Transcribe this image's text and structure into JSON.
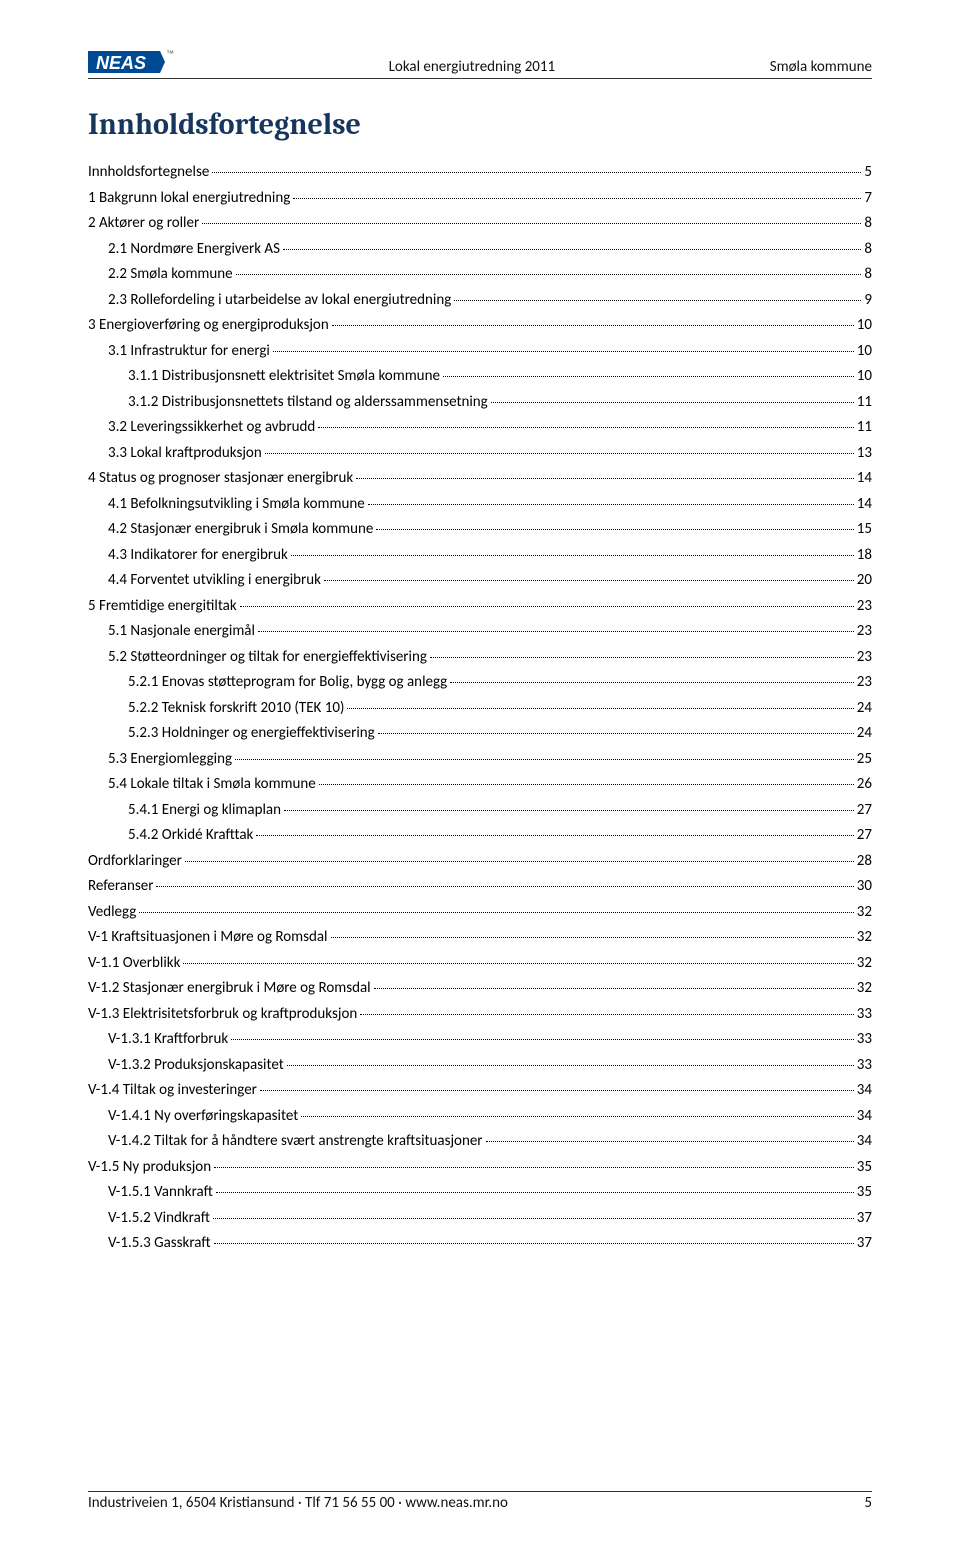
{
  "header": {
    "center": "Lokal energiutredning 2011",
    "right": "Smøla kommune"
  },
  "logo": {
    "text": "NEAS",
    "bg_color": "#004a93",
    "text_color": "#ffffff",
    "trademark": "™"
  },
  "title": "Innholdsfortegnelse",
  "toc": [
    {
      "label": "Innholdsfortegnelse",
      "page": "5",
      "indent": 0
    },
    {
      "label": "1 Bakgrunn lokal energiutredning",
      "page": "7",
      "indent": 0
    },
    {
      "label": "2 Aktører og roller",
      "page": "8",
      "indent": 0
    },
    {
      "label": "2.1 Nordmøre Energiverk AS",
      "page": "8",
      "indent": 1
    },
    {
      "label": "2.2 Smøla kommune",
      "page": "8",
      "indent": 1
    },
    {
      "label": "2.3 Rollefordeling i utarbeidelse av lokal energiutredning",
      "page": "9",
      "indent": 1
    },
    {
      "label": "3 Energioverføring og energiproduksjon",
      "page": "10",
      "indent": 0
    },
    {
      "label": "3.1 Infrastruktur for energi",
      "page": "10",
      "indent": 1
    },
    {
      "label": "3.1.1 Distribusjonsnett elektrisitet Smøla kommune",
      "page": "10",
      "indent": 2
    },
    {
      "label": "3.1.2  Distribusjonsnettets tilstand og alderssammensetning",
      "page": "11",
      "indent": 2
    },
    {
      "label": "3.2 Leveringssikkerhet og avbrudd",
      "page": "11",
      "indent": 1
    },
    {
      "label": "3.3 Lokal kraftproduksjon",
      "page": "13",
      "indent": 1
    },
    {
      "label": "4 Status og prognoser stasjonær energibruk",
      "page": "14",
      "indent": 0
    },
    {
      "label": "4.1 Befolkningsutvikling i Smøla kommune",
      "page": "14",
      "indent": 1
    },
    {
      "label": "4.2 Stasjonær energibruk i Smøla kommune",
      "page": "15",
      "indent": 1
    },
    {
      "label": "4.3 Indikatorer for energibruk",
      "page": "18",
      "indent": 1
    },
    {
      "label": "4.4 Forventet utvikling i energibruk",
      "page": "20",
      "indent": 1
    },
    {
      "label": "5 Fremtidige energitiltak",
      "page": "23",
      "indent": 0
    },
    {
      "label": "5.1 Nasjonale energimål",
      "page": "23",
      "indent": 1
    },
    {
      "label": "5.2 Støtteordninger og tiltak for energieffektivisering",
      "page": "23",
      "indent": 1
    },
    {
      "label": "5.2.1 Enovas støtteprogram for Bolig, bygg og anlegg",
      "page": "23",
      "indent": 2
    },
    {
      "label": "5.2.2 Teknisk forskrift 2010 (TEK 10)",
      "page": "24",
      "indent": 2
    },
    {
      "label": "5.2.3 Holdninger og energieffektivisering",
      "page": "24",
      "indent": 2
    },
    {
      "label": "5.3 Energiomlegging",
      "page": "25",
      "indent": 1
    },
    {
      "label": "5.4 Lokale tiltak i Smøla kommune",
      "page": "26",
      "indent": 1
    },
    {
      "label": "5.4.1 Energi og klimaplan",
      "page": "27",
      "indent": 2
    },
    {
      "label": "5.4.2 Orkidé Krafttak",
      "page": "27",
      "indent": 2
    },
    {
      "label": "Ordforklaringer",
      "page": "28",
      "indent": 0
    },
    {
      "label": "Referanser",
      "page": "30",
      "indent": 0
    },
    {
      "label": "Vedlegg",
      "page": "32",
      "indent": 0
    },
    {
      "label": "V-1 Kraftsituasjonen i Møre og Romsdal",
      "page": "32",
      "indent": 0
    },
    {
      "label": "V-1.1 Overblikk",
      "page": "32",
      "indent": 0
    },
    {
      "label": "V-1.2 Stasjonær energibruk i Møre og Romsdal",
      "page": "32",
      "indent": 0
    },
    {
      "label": "V-1.3      Elektrisitetsforbruk og kraftproduksjon",
      "page": "33",
      "indent": 0
    },
    {
      "label": "V-1.3.1    Kraftforbruk",
      "page": "33",
      "indent": 1
    },
    {
      "label": "V-1.3.2    Produksjonskapasitet",
      "page": "33",
      "indent": 1
    },
    {
      "label": "V-1.4      Tiltak og investeringer",
      "page": "34",
      "indent": 0
    },
    {
      "label": "V-1.4.1    Ny overføringskapasitet",
      "page": "34",
      "indent": 1
    },
    {
      "label": "V-1.4.2    Tiltak for å håndtere svært anstrengte kraftsituasjoner",
      "page": "34",
      "indent": 1
    },
    {
      "label": "V-1.5      Ny produksjon",
      "page": "35",
      "indent": 0
    },
    {
      "label": "V-1.5.1    Vannkraft",
      "page": "35",
      "indent": 1
    },
    {
      "label": "V-1.5.2    Vindkraft",
      "page": "37",
      "indent": 1
    },
    {
      "label": "V-1.5.3    Gasskraft",
      "page": "37",
      "indent": 1
    }
  ],
  "footer": {
    "left": "Industriveien 1, 6504 Kristiansund · Tlf 71 56 55 00 · www.neas.mr.no",
    "page_number": "5"
  },
  "styles": {
    "body_bg": "#ffffff",
    "title_color": "#17365d",
    "text_color": "#000000",
    "border_color": "#333333",
    "font_family": "Calibri, Arial, sans-serif",
    "title_font": "Cambria, Georgia, serif",
    "title_fontsize": 30,
    "body_fontsize": 15,
    "line_height": 1.7
  }
}
